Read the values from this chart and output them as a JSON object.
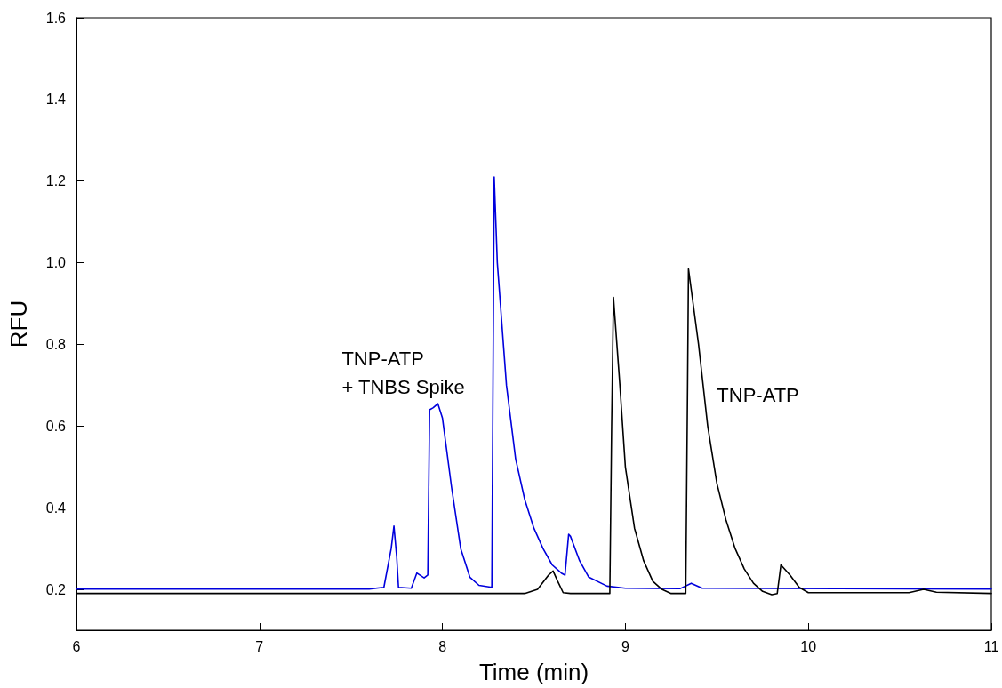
{
  "chart_data": {
    "type": "line",
    "xlabel": "Time (min)",
    "ylabel": "RFU",
    "xlim": [
      6,
      11
    ],
    "xticks": [
      6,
      7,
      8,
      9,
      10,
      11
    ],
    "ylim": [
      0.1,
      1.6
    ],
    "yticks": [
      {
        "value": 0.2,
        "label": "0.2"
      },
      {
        "value": 0.4,
        "label": "0.4"
      },
      {
        "value": 0.6,
        "label": "0.6"
      },
      {
        "value": 0.8,
        "label": "0.8"
      },
      {
        "value": 1.0,
        "label": "1.0"
      },
      {
        "value": 1.2,
        "label": "1.2"
      },
      {
        "value": 1.4,
        "label": "1.4"
      },
      {
        "value": 1.6,
        "label": "1.6"
      }
    ],
    "grid": false,
    "legend": false,
    "marker": "none",
    "line_style": "solid",
    "series": [
      {
        "name": "TNP-ATP\n+ TNBS Spike",
        "color": "#0000dd",
        "x": [
          6,
          7.6,
          7.68,
          7.72,
          7.735,
          7.75,
          7.76,
          7.83,
          7.86,
          7.9,
          7.92,
          7.93,
          7.95,
          7.975,
          8.0,
          8.05,
          8.1,
          8.15,
          8.2,
          8.27,
          8.283,
          8.3,
          8.35,
          8.4,
          8.45,
          8.5,
          8.55,
          8.6,
          8.65,
          8.67,
          8.69,
          8.7,
          8.75,
          8.8,
          8.9,
          9.0,
          9.3,
          9.36,
          9.42,
          11
        ],
        "values": [
          0.201,
          0.201,
          0.205,
          0.3,
          0.355,
          0.28,
          0.205,
          0.203,
          0.24,
          0.228,
          0.235,
          0.64,
          0.645,
          0.655,
          0.62,
          0.45,
          0.3,
          0.23,
          0.21,
          0.205,
          1.21,
          1.0,
          0.7,
          0.52,
          0.42,
          0.35,
          0.3,
          0.26,
          0.24,
          0.235,
          0.335,
          0.33,
          0.27,
          0.23,
          0.208,
          0.203,
          0.202,
          0.215,
          0.203,
          0.201
        ]
      },
      {
        "name": "TNP-ATP",
        "color": "#000000",
        "x": [
          6,
          8.45,
          8.52,
          8.58,
          8.605,
          8.63,
          8.66,
          8.7,
          8.915,
          8.925,
          8.935,
          8.97,
          9.0,
          9.05,
          9.1,
          9.15,
          9.2,
          9.25,
          9.33,
          9.34,
          9.345,
          9.4,
          9.45,
          9.5,
          9.55,
          9.6,
          9.65,
          9.7,
          9.75,
          9.8,
          9.83,
          9.85,
          9.9,
          9.95,
          10.0,
          10.55,
          10.63,
          10.7,
          11
        ],
        "values": [
          0.19,
          0.19,
          0.2,
          0.235,
          0.245,
          0.22,
          0.192,
          0.19,
          0.19,
          0.6,
          0.915,
          0.7,
          0.5,
          0.35,
          0.27,
          0.22,
          0.2,
          0.19,
          0.19,
          0.7,
          0.985,
          0.8,
          0.6,
          0.46,
          0.37,
          0.3,
          0.25,
          0.215,
          0.195,
          0.187,
          0.19,
          0.26,
          0.235,
          0.205,
          0.192,
          0.192,
          0.2,
          0.193,
          0.19
        ]
      }
    ]
  }
}
